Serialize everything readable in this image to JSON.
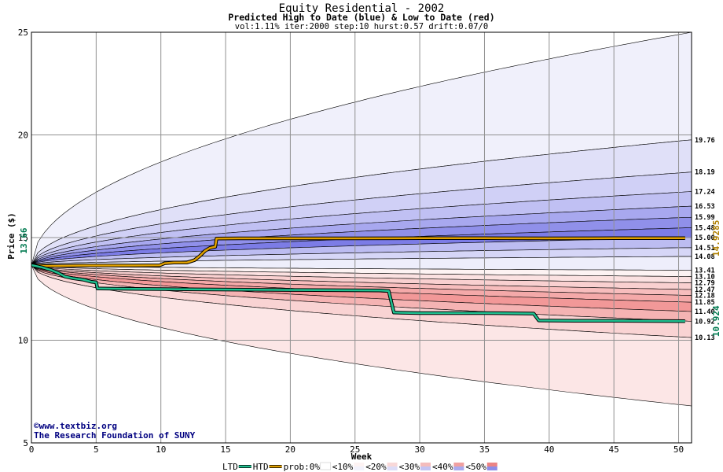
{
  "chart_data": {
    "type": "area",
    "title": "Equity Residential - 2002",
    "subtitle": "Predicted High to Date (blue) &  Low to Date (red)",
    "params": "vol:1.11% iter:2000 step:10 hurst:0.57 drift:0.07/0",
    "xlabel": "Week",
    "ylabel": "Price ($)",
    "xlim": [
      0,
      51
    ],
    "ylim": [
      5,
      25
    ],
    "xticks": [
      0,
      5,
      10,
      15,
      20,
      25,
      30,
      35,
      40,
      45,
      50
    ],
    "yticks": [
      5,
      10,
      15,
      20,
      25
    ],
    "start_price": 13.66,
    "start_label": "13.66",
    "grid": true,
    "upper_band_ends": [
      25.0,
      19.76,
      18.19,
      17.24,
      16.53,
      15.99,
      15.48,
      15.0,
      14.51,
      14.08,
      13.41
    ],
    "lower_band_ends": [
      13.41,
      13.1,
      12.79,
      12.47,
      12.18,
      11.85,
      11.4,
      10.92,
      10.13,
      6.8
    ],
    "right_labels": [
      "19.76",
      "18.19",
      "17.24",
      "16.53",
      "15.99",
      "15.48",
      "15.00",
      "14.51",
      "14.08",
      "13.41",
      "13.10",
      "12.79",
      "12.47",
      "12.18",
      "11.85",
      "11.40",
      "10.92",
      "10.13"
    ],
    "upper_fill_colors": [
      "#f0f0fb",
      "#e0e0f8",
      "#d0d0f6",
      "#c0c0f3",
      "#a8a8ef",
      "#9090ea",
      "#7c7ce6",
      "#bcbcf1",
      "#d6d6f7",
      "#eeeefb"
    ],
    "lower_fill_colors": [
      "#fdf3f3",
      "#fbe1e1",
      "#f9d0d0",
      "#f7bdbd",
      "#f4a9a9",
      "#f29898",
      "#f5b3b3",
      "#f9d3d3",
      "#fce6e6",
      "#fef3f3"
    ],
    "htd_series": {
      "name": "HTD",
      "label": "14.9285",
      "color": "#e0a000",
      "points": [
        [
          0,
          13.66
        ],
        [
          1,
          13.62
        ],
        [
          2,
          13.62
        ],
        [
          4,
          13.64
        ],
        [
          6,
          13.64
        ],
        [
          8,
          13.64
        ],
        [
          9.9,
          13.65
        ],
        [
          10.3,
          13.75
        ],
        [
          11,
          13.78
        ],
        [
          12,
          13.78
        ],
        [
          12.6,
          13.9
        ],
        [
          13,
          14.1
        ],
        [
          13.4,
          14.35
        ],
        [
          13.8,
          14.5
        ],
        [
          14.2,
          14.55
        ],
        [
          14.3,
          14.95
        ],
        [
          16,
          14.96
        ],
        [
          20,
          14.96
        ],
        [
          25,
          14.96
        ],
        [
          30,
          14.97
        ],
        [
          35,
          14.97
        ],
        [
          40,
          14.96
        ],
        [
          45,
          14.97
        ],
        [
          50.5,
          14.97
        ]
      ]
    },
    "ltd_series": {
      "name": "LTD",
      "label": "10.924",
      "color": "#20c090",
      "points": [
        [
          0,
          13.66
        ],
        [
          0.8,
          13.55
        ],
        [
          1.5,
          13.42
        ],
        [
          2,
          13.3
        ],
        [
          2.6,
          13.1
        ],
        [
          3.2,
          13.02
        ],
        [
          4,
          12.95
        ],
        [
          4.6,
          12.85
        ],
        [
          5,
          12.82
        ],
        [
          5.1,
          12.52
        ],
        [
          8,
          12.5
        ],
        [
          12,
          12.48
        ],
        [
          20,
          12.45
        ],
        [
          27,
          12.42
        ],
        [
          27.6,
          12.4
        ],
        [
          28,
          11.35
        ],
        [
          30,
          11.32
        ],
        [
          35,
          11.32
        ],
        [
          38.8,
          11.3
        ],
        [
          39.2,
          10.96
        ],
        [
          42,
          10.95
        ],
        [
          45,
          10.95
        ],
        [
          50.5,
          10.93
        ]
      ]
    },
    "legend": {
      "ltd": "LTD",
      "htd": "HTD",
      "prob": "prob:0%",
      "buckets": [
        "<10%",
        "<20%",
        "<30%",
        "<40%",
        "<50%"
      ],
      "bucket_colors": [
        "#f2f2fc",
        "#dcdcf7",
        "#c3c3f3",
        "#aaaaef",
        "#8d8de8"
      ],
      "bucket_colors_red": [
        "#fdf3f3",
        "#f8d8d8",
        "#f4bcbc",
        "#f0a0a0",
        "#ec8484"
      ]
    },
    "watermark": {
      "line1": "©www.textbiz.org",
      "line2": "The Research Foundation of SUNY"
    }
  }
}
